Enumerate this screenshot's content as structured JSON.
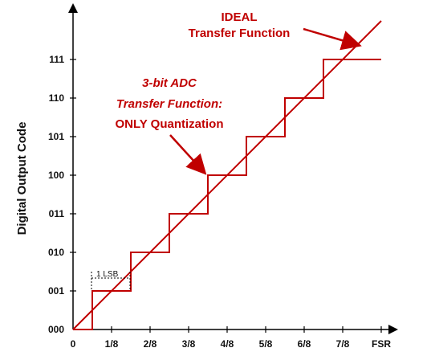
{
  "chart_data": {
    "type": "line",
    "xlabel": "",
    "ylabel": "Digital Output Code",
    "x_ticks": [
      "0",
      "1/8",
      "2/8",
      "3/8",
      "4/8",
      "5/8",
      "6/8",
      "7/8",
      "FSR"
    ],
    "y_ticks": [
      "000",
      "001",
      "010",
      "011",
      "100",
      "101",
      "110",
      "111"
    ],
    "xlim": [
      0,
      1
    ],
    "ylim": [
      0,
      8
    ],
    "series": [
      {
        "name": "IDEAL Transfer Function",
        "x": [
          0,
          1
        ],
        "y": [
          0,
          8
        ],
        "color": "#c00000"
      },
      {
        "name": "3-bit ADC Transfer Function: ONLY Quantization",
        "x": [
          0,
          0.0625,
          0.0625,
          0.1875,
          0.1875,
          0.3125,
          0.3125,
          0.4375,
          0.4375,
          0.5625,
          0.5625,
          0.6875,
          0.6875,
          0.8125,
          0.8125,
          1
        ],
        "y": [
          0,
          0,
          1,
          1,
          2,
          2,
          3,
          3,
          4,
          4,
          5,
          5,
          6,
          6,
          7,
          7
        ],
        "color": "#c00000"
      }
    ],
    "annotations": [
      {
        "id": "ideal_l1",
        "text": "IDEAL"
      },
      {
        "id": "ideal_l2",
        "text": "Transfer Function"
      },
      {
        "id": "adc_l1",
        "text": "3-bit ADC"
      },
      {
        "id": "adc_l2",
        "text": "Transfer Function:"
      },
      {
        "id": "adc_l3",
        "text": "ONLY Quantization"
      },
      {
        "id": "lsb",
        "text": "1 LSB"
      }
    ],
    "grid": false,
    "colors": {
      "trace": "#c00000",
      "axis": "#000000"
    }
  }
}
